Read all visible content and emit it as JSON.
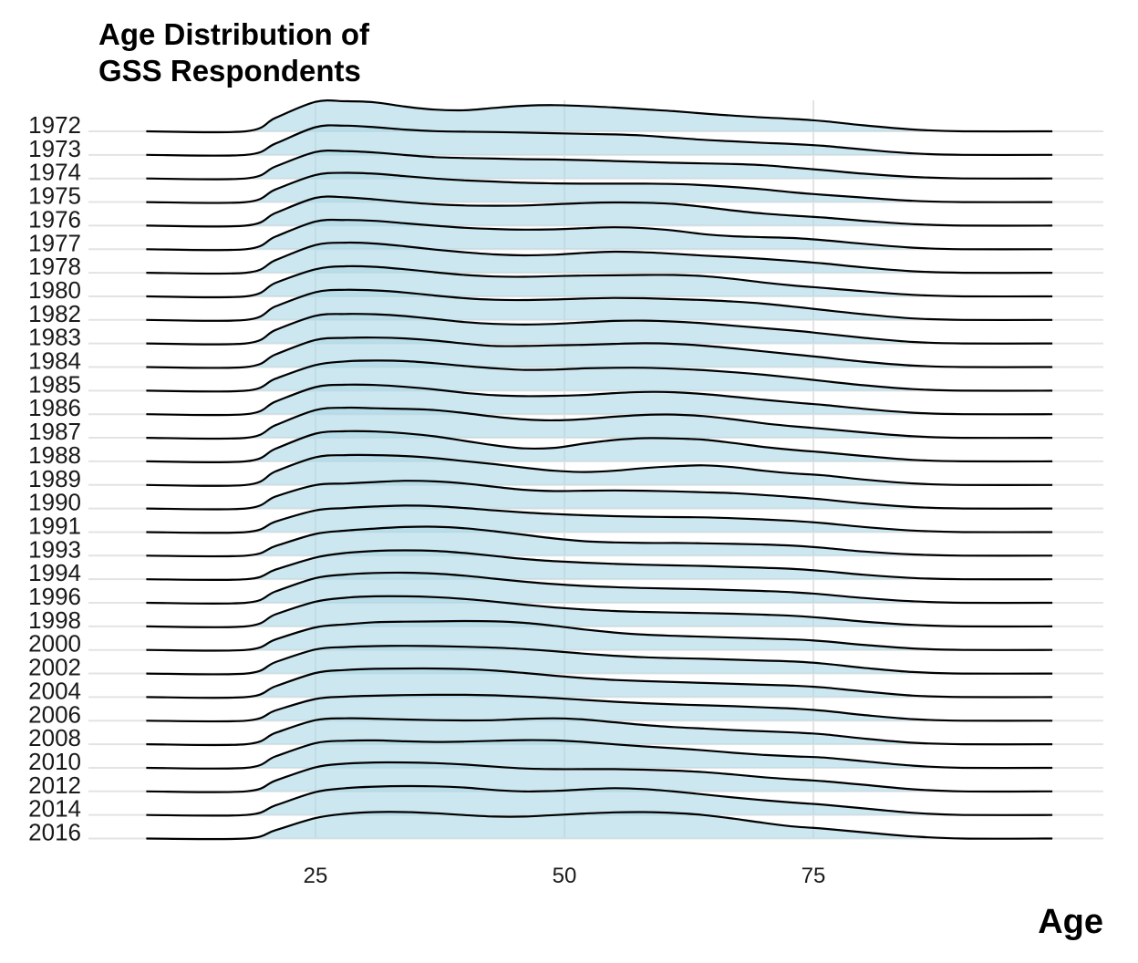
{
  "chart_data": {
    "type": "ridgeline",
    "title_lines": [
      "Age Distribution of",
      "GSS Respondents"
    ],
    "xlabel": "Age",
    "ylabel": "",
    "xlim": [
      8,
      99
    ],
    "x_ticks": [
      25,
      50,
      75
    ],
    "grid": true,
    "fill_color": "#add8e6",
    "line_color": "#000000",
    "years": [
      "1972",
      "1973",
      "1974",
      "1975",
      "1976",
      "1977",
      "1978",
      "1980",
      "1982",
      "1983",
      "1984",
      "1985",
      "1986",
      "1987",
      "1988",
      "1989",
      "1990",
      "1991",
      "1993",
      "1994",
      "1996",
      "1998",
      "2000",
      "2002",
      "2004",
      "2006",
      "2008",
      "2010",
      "2012",
      "2014",
      "2016"
    ],
    "density_x": [
      8,
      18,
      21,
      25,
      28,
      31,
      34,
      37,
      40,
      43,
      46,
      49,
      52,
      55,
      58,
      61,
      64,
      67,
      70,
      73,
      76,
      80,
      85,
      90,
      99
    ],
    "series": [
      {
        "name": "1972",
        "values": [
          0,
          0,
          0.45,
          0.98,
          1.0,
          0.96,
          0.82,
          0.72,
          0.7,
          0.78,
          0.85,
          0.87,
          0.84,
          0.79,
          0.73,
          0.67,
          0.59,
          0.52,
          0.46,
          0.41,
          0.34,
          0.2,
          0.06,
          0,
          0
        ]
      },
      {
        "name": "1973",
        "values": [
          0,
          0,
          0.38,
          0.92,
          0.97,
          0.92,
          0.84,
          0.79,
          0.77,
          0.76,
          0.74,
          0.72,
          0.7,
          0.68,
          0.64,
          0.57,
          0.5,
          0.45,
          0.4,
          0.36,
          0.3,
          0.18,
          0.05,
          0,
          0
        ]
      },
      {
        "name": "1974",
        "values": [
          0,
          0,
          0.4,
          0.88,
          0.91,
          0.86,
          0.78,
          0.71,
          0.68,
          0.66,
          0.64,
          0.63,
          0.61,
          0.58,
          0.55,
          0.52,
          0.5,
          0.48,
          0.44,
          0.36,
          0.28,
          0.16,
          0.05,
          0,
          0
        ]
      },
      {
        "name": "1975",
        "values": [
          0,
          0,
          0.42,
          0.9,
          0.97,
          0.94,
          0.86,
          0.78,
          0.72,
          0.68,
          0.64,
          0.62,
          0.61,
          0.61,
          0.61,
          0.6,
          0.56,
          0.5,
          0.42,
          0.32,
          0.24,
          0.15,
          0.04,
          0,
          0
        ]
      },
      {
        "name": "1976",
        "values": [
          0,
          0,
          0.42,
          0.92,
          0.94,
          0.87,
          0.78,
          0.71,
          0.67,
          0.66,
          0.67,
          0.71,
          0.75,
          0.77,
          0.76,
          0.72,
          0.62,
          0.5,
          0.4,
          0.33,
          0.27,
          0.16,
          0.05,
          0,
          0
        ]
      },
      {
        "name": "1977",
        "values": [
          0,
          0,
          0.42,
          0.92,
          0.97,
          0.94,
          0.86,
          0.78,
          0.71,
          0.67,
          0.65,
          0.66,
          0.7,
          0.73,
          0.7,
          0.62,
          0.5,
          0.43,
          0.4,
          0.37,
          0.3,
          0.18,
          0.05,
          0,
          0
        ]
      },
      {
        "name": "1978",
        "values": [
          0,
          0,
          0.42,
          0.92,
          1.0,
          0.97,
          0.88,
          0.77,
          0.68,
          0.61,
          0.58,
          0.6,
          0.66,
          0.7,
          0.68,
          0.63,
          0.57,
          0.52,
          0.46,
          0.39,
          0.31,
          0.18,
          0.05,
          0,
          0
        ]
      },
      {
        "name": "1980",
        "values": [
          0,
          0,
          0.45,
          0.9,
          1.0,
          0.98,
          0.9,
          0.8,
          0.71,
          0.66,
          0.65,
          0.67,
          0.69,
          0.7,
          0.71,
          0.71,
          0.67,
          0.58,
          0.46,
          0.36,
          0.28,
          0.17,
          0.05,
          0,
          0
        ]
      },
      {
        "name": "1982",
        "values": [
          0,
          0,
          0.45,
          0.92,
          1.0,
          0.98,
          0.91,
          0.81,
          0.72,
          0.67,
          0.66,
          0.68,
          0.71,
          0.73,
          0.72,
          0.69,
          0.66,
          0.61,
          0.54,
          0.44,
          0.33,
          0.19,
          0.05,
          0,
          0
        ]
      },
      {
        "name": "1983",
        "values": [
          0,
          0,
          0.45,
          0.92,
          0.98,
          0.97,
          0.91,
          0.81,
          0.71,
          0.65,
          0.63,
          0.65,
          0.7,
          0.75,
          0.76,
          0.73,
          0.67,
          0.59,
          0.51,
          0.43,
          0.33,
          0.19,
          0.05,
          0,
          0
        ]
      },
      {
        "name": "1984",
        "values": [
          0,
          0,
          0.42,
          0.9,
          0.97,
          0.98,
          0.95,
          0.88,
          0.78,
          0.7,
          0.7,
          0.72,
          0.74,
          0.77,
          0.79,
          0.77,
          0.71,
          0.62,
          0.52,
          0.42,
          0.32,
          0.18,
          0.05,
          0,
          0
        ]
      },
      {
        "name": "1985",
        "values": [
          0,
          0,
          0.4,
          0.85,
          0.97,
          1.0,
          0.98,
          0.91,
          0.82,
          0.74,
          0.69,
          0.7,
          0.74,
          0.76,
          0.76,
          0.73,
          0.68,
          0.61,
          0.53,
          0.43,
          0.32,
          0.18,
          0.05,
          0,
          0
        ]
      },
      {
        "name": "1986",
        "values": [
          0,
          0,
          0.42,
          0.9,
          0.98,
          0.97,
          0.91,
          0.82,
          0.71,
          0.63,
          0.6,
          0.61,
          0.64,
          0.7,
          0.74,
          0.73,
          0.67,
          0.58,
          0.48,
          0.39,
          0.31,
          0.18,
          0.05,
          0,
          0
        ]
      },
      {
        "name": "1987",
        "values": [
          0,
          0,
          0.42,
          0.92,
          1.0,
          0.98,
          0.96,
          0.92,
          0.82,
          0.7,
          0.61,
          0.58,
          0.62,
          0.7,
          0.76,
          0.77,
          0.72,
          0.61,
          0.48,
          0.38,
          0.3,
          0.18,
          0.05,
          0,
          0
        ]
      },
      {
        "name": "1988",
        "values": [
          0,
          0,
          0.42,
          0.92,
          1.0,
          0.99,
          0.93,
          0.83,
          0.68,
          0.53,
          0.43,
          0.45,
          0.59,
          0.71,
          0.77,
          0.76,
          0.72,
          0.61,
          0.48,
          0.38,
          0.3,
          0.18,
          0.05,
          0,
          0
        ]
      },
      {
        "name": "1989",
        "values": [
          0,
          0,
          0.45,
          0.92,
          0.99,
          0.99,
          0.96,
          0.89,
          0.79,
          0.69,
          0.57,
          0.47,
          0.43,
          0.47,
          0.56,
          0.62,
          0.65,
          0.59,
          0.47,
          0.38,
          0.32,
          0.18,
          0.05,
          0,
          0
        ]
      },
      {
        "name": "1990",
        "values": [
          0,
          0,
          0.4,
          0.78,
          0.83,
          0.88,
          0.92,
          0.9,
          0.83,
          0.72,
          0.62,
          0.58,
          0.59,
          0.6,
          0.59,
          0.57,
          0.54,
          0.51,
          0.45,
          0.38,
          0.3,
          0.17,
          0.05,
          0,
          0
        ]
      },
      {
        "name": "1991",
        "values": [
          0,
          0,
          0.35,
          0.72,
          0.8,
          0.85,
          0.88,
          0.86,
          0.8,
          0.72,
          0.65,
          0.6,
          0.56,
          0.53,
          0.51,
          0.5,
          0.49,
          0.46,
          0.42,
          0.37,
          0.3,
          0.17,
          0.05,
          0,
          0
        ]
      },
      {
        "name": "1993",
        "values": [
          0,
          0,
          0.32,
          0.72,
          0.83,
          0.9,
          0.95,
          0.96,
          0.91,
          0.81,
          0.69,
          0.57,
          0.48,
          0.44,
          0.42,
          0.42,
          0.41,
          0.39,
          0.37,
          0.33,
          0.26,
          0.14,
          0.04,
          0,
          0
        ]
      },
      {
        "name": "1994",
        "values": [
          0,
          0,
          0.32,
          0.72,
          0.87,
          0.94,
          0.96,
          0.94,
          0.87,
          0.77,
          0.67,
          0.6,
          0.55,
          0.51,
          0.48,
          0.46,
          0.44,
          0.41,
          0.38,
          0.34,
          0.27,
          0.15,
          0.04,
          0,
          0
        ]
      },
      {
        "name": "1996",
        "values": [
          0,
          0,
          0.38,
          0.82,
          0.94,
          0.99,
          1.0,
          0.97,
          0.9,
          0.8,
          0.7,
          0.62,
          0.56,
          0.52,
          0.49,
          0.47,
          0.45,
          0.42,
          0.39,
          0.35,
          0.28,
          0.16,
          0.05,
          0,
          0
        ]
      },
      {
        "name": "1998",
        "values": [
          0,
          0,
          0.4,
          0.82,
          0.95,
          1.0,
          1.0,
          0.97,
          0.91,
          0.82,
          0.72,
          0.63,
          0.56,
          0.51,
          0.48,
          0.46,
          0.44,
          0.42,
          0.39,
          0.35,
          0.28,
          0.16,
          0.05,
          0,
          0
        ]
      },
      {
        "name": "2000",
        "values": [
          0,
          0,
          0.35,
          0.75,
          0.85,
          0.92,
          0.94,
          0.95,
          0.96,
          0.95,
          0.9,
          0.8,
          0.68,
          0.58,
          0.51,
          0.47,
          0.44,
          0.41,
          0.38,
          0.35,
          0.29,
          0.17,
          0.05,
          0,
          0
        ]
      },
      {
        "name": "2002",
        "values": [
          0,
          0,
          0.38,
          0.8,
          0.88,
          0.91,
          0.92,
          0.91,
          0.89,
          0.86,
          0.81,
          0.74,
          0.66,
          0.59,
          0.54,
          0.51,
          0.49,
          0.46,
          0.43,
          0.4,
          0.33,
          0.19,
          0.05,
          0,
          0
        ]
      },
      {
        "name": "2004",
        "values": [
          0,
          0,
          0.36,
          0.8,
          0.9,
          0.94,
          0.95,
          0.95,
          0.93,
          0.88,
          0.8,
          0.71,
          0.63,
          0.57,
          0.53,
          0.5,
          0.47,
          0.44,
          0.41,
          0.38,
          0.32,
          0.19,
          0.05,
          0,
          0
        ]
      },
      {
        "name": "2006",
        "values": [
          0,
          0,
          0.34,
          0.72,
          0.8,
          0.83,
          0.85,
          0.86,
          0.86,
          0.84,
          0.8,
          0.75,
          0.69,
          0.63,
          0.58,
          0.54,
          0.51,
          0.48,
          0.44,
          0.4,
          0.33,
          0.19,
          0.05,
          0,
          0
        ]
      },
      {
        "name": "2008",
        "values": [
          0,
          0,
          0.38,
          0.8,
          0.86,
          0.85,
          0.82,
          0.8,
          0.79,
          0.8,
          0.84,
          0.86,
          0.82,
          0.73,
          0.64,
          0.57,
          0.52,
          0.47,
          0.43,
          0.39,
          0.33,
          0.19,
          0.05,
          0,
          0
        ]
      },
      {
        "name": "2010",
        "values": [
          0,
          0,
          0.38,
          0.82,
          0.9,
          0.91,
          0.88,
          0.86,
          0.87,
          0.9,
          0.92,
          0.91,
          0.86,
          0.78,
          0.71,
          0.65,
          0.58,
          0.5,
          0.43,
          0.38,
          0.34,
          0.22,
          0.07,
          0,
          0
        ]
      },
      {
        "name": "2012",
        "values": [
          0,
          0,
          0.36,
          0.8,
          0.92,
          0.96,
          0.96,
          0.94,
          0.89,
          0.82,
          0.76,
          0.74,
          0.74,
          0.74,
          0.72,
          0.69,
          0.64,
          0.56,
          0.47,
          0.4,
          0.34,
          0.22,
          0.07,
          0,
          0
        ]
      },
      {
        "name": "2014",
        "values": [
          0,
          0,
          0.32,
          0.76,
          0.89,
          0.94,
          0.96,
          0.95,
          0.91,
          0.83,
          0.78,
          0.8,
          0.85,
          0.89,
          0.86,
          0.78,
          0.68,
          0.58,
          0.49,
          0.41,
          0.34,
          0.22,
          0.07,
          0,
          0
        ]
      },
      {
        "name": "2016",
        "values": [
          0,
          0,
          0.28,
          0.68,
          0.82,
          0.88,
          0.88,
          0.84,
          0.78,
          0.73,
          0.73,
          0.78,
          0.83,
          0.87,
          0.88,
          0.85,
          0.78,
          0.66,
          0.52,
          0.4,
          0.33,
          0.21,
          0.07,
          0,
          0
        ]
      }
    ]
  }
}
